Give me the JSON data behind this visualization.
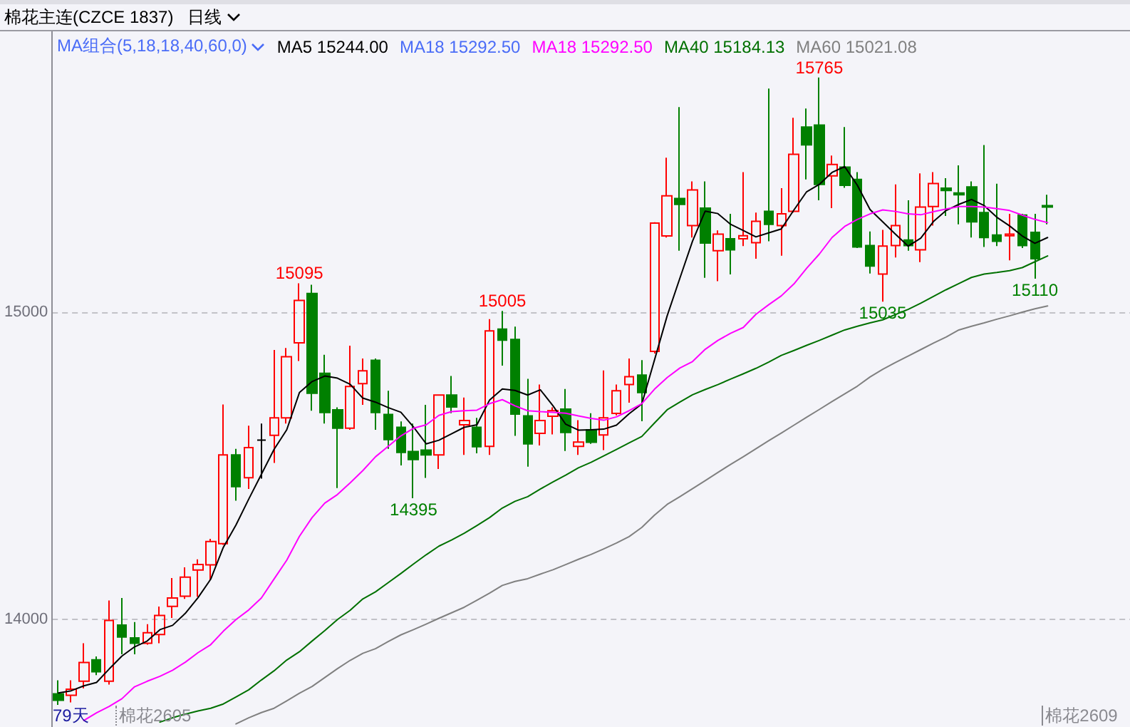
{
  "chart_data": {
    "type": "candlestick",
    "title": "棉花主连(CZCE 1837)",
    "subtitle": "日线",
    "legend_title": "MA组合(5,18,18,40,60,0)",
    "legend": "top left",
    "grid": "y",
    "tick_labels": "y",
    "marker": "none",
    "categories": [
      null,
      null,
      null,
      null,
      null,
      null,
      null,
      null,
      null,
      null,
      null,
      null,
      null,
      null,
      null,
      null,
      null,
      null,
      null,
      null,
      null,
      null,
      null,
      null,
      null,
      null,
      null,
      null,
      null,
      null,
      null,
      null,
      null,
      null,
      null,
      null,
      null,
      null,
      null,
      null,
      null,
      null,
      null,
      null,
      null,
      null,
      null,
      null,
      null,
      null,
      null,
      null,
      null,
      null,
      null,
      null,
      null,
      null,
      null,
      null,
      null,
      null,
      null,
      null,
      null,
      null,
      null,
      null,
      null,
      null,
      null,
      null,
      null,
      null,
      null,
      null,
      null,
      null,
      null
    ],
    "ylim": [
      13650,
      15920
    ],
    "yticks": [
      14000,
      15000
    ],
    "ohlc": [
      [
        13758,
        13802,
        13722,
        13737
      ],
      [
        13753,
        13802,
        13730,
        13773
      ],
      [
        13799,
        13923,
        13776,
        13860
      ],
      [
        13869,
        13880,
        13819,
        13830
      ],
      [
        13799,
        14062,
        13788,
        13997
      ],
      [
        13982,
        14070,
        13887,
        13943
      ],
      [
        13940,
        13992,
        13887,
        13923
      ],
      [
        13923,
        13985,
        13918,
        13957
      ],
      [
        13951,
        14042,
        13923,
        14013
      ],
      [
        14043,
        14135,
        14005,
        14070
      ],
      [
        14076,
        14170,
        14067,
        14138
      ],
      [
        14161,
        14196,
        14074,
        14179
      ],
      [
        14178,
        14263,
        14128,
        14254
      ],
      [
        14247,
        14700,
        14243,
        14536
      ],
      [
        14536,
        14556,
        14387,
        14433
      ],
      [
        14462,
        14631,
        14425,
        14560
      ],
      [
        14584,
        14638,
        14459,
        14584
      ],
      [
        14600,
        14878,
        14510,
        14657
      ],
      [
        14657,
        14884,
        14638,
        14856
      ],
      [
        14901,
        15095,
        14842,
        15039
      ],
      [
        15062,
        15090,
        14680,
        14737
      ],
      [
        14802,
        14862,
        14638,
        14674
      ],
      [
        14683,
        14691,
        14428,
        14623
      ],
      [
        14623,
        14892,
        14618,
        14759
      ],
      [
        14768,
        14850,
        14699,
        14810
      ],
      [
        14844,
        14850,
        14618,
        14674
      ],
      [
        14668,
        14745,
        14556,
        14586
      ],
      [
        14626,
        14645,
        14502,
        14544
      ],
      [
        14547,
        14638,
        14395,
        14521
      ],
      [
        14552,
        14699,
        14461,
        14536
      ],
      [
        14536,
        14731,
        14490,
        14731
      ],
      [
        14731,
        14793,
        14672,
        14692
      ],
      [
        14634,
        14723,
        14536,
        14648
      ],
      [
        14626,
        14657,
        14541,
        14563
      ],
      [
        14564,
        14978,
        14536,
        14940
      ],
      [
        14946,
        15005,
        14827,
        14910
      ],
      [
        14912,
        14954,
        14598,
        14669
      ],
      [
        14663,
        14784,
        14498,
        14572
      ],
      [
        14606,
        14765,
        14567,
        14648
      ],
      [
        14662,
        14691,
        14603,
        14680
      ],
      [
        14685,
        14751,
        14549,
        14609
      ],
      [
        14564,
        14649,
        14536,
        14578
      ],
      [
        14618,
        14672,
        14572,
        14577
      ],
      [
        14601,
        14811,
        14552,
        14657
      ],
      [
        14671,
        14765,
        14665,
        14745
      ],
      [
        14765,
        14850,
        14706,
        14791
      ],
      [
        14796,
        14845,
        14646,
        14739
      ],
      [
        14873,
        15294,
        14866,
        15291
      ],
      [
        15249,
        15504,
        15244,
        15380
      ],
      [
        15371,
        15669,
        15201,
        15352
      ],
      [
        15283,
        15427,
        15244,
        15399
      ],
      [
        15340,
        15427,
        15113,
        15226
      ],
      [
        15201,
        15267,
        15102,
        15255
      ],
      [
        15240,
        15321,
        15124,
        15204
      ],
      [
        15240,
        15457,
        15216,
        15250
      ],
      [
        15227,
        15325,
        15175,
        15297
      ],
      [
        15329,
        15729,
        15232,
        15287
      ],
      [
        15283,
        15405,
        15185,
        15321
      ],
      [
        15329,
        15634,
        15325,
        15515
      ],
      [
        15604,
        15664,
        15433,
        15546
      ],
      [
        15610,
        15765,
        15365,
        15417
      ],
      [
        15445,
        15511,
        15340,
        15482
      ],
      [
        15473,
        15604,
        15406,
        15414
      ],
      [
        15433,
        15457,
        15210,
        15213
      ],
      [
        15218,
        15264,
        15127,
        15151
      ],
      [
        15125,
        15269,
        15035,
        15216
      ],
      [
        15218,
        15417,
        15179,
        15283
      ],
      [
        15236,
        15365,
        15201,
        15218
      ],
      [
        15204,
        15453,
        15164,
        15343
      ],
      [
        15345,
        15457,
        15283,
        15420
      ],
      [
        15405,
        15437,
        15314,
        15397
      ],
      [
        15389,
        15479,
        15287,
        15383
      ],
      [
        15409,
        15427,
        15244,
        15295
      ],
      [
        15325,
        15545,
        15213,
        15244
      ],
      [
        15252,
        15419,
        15216,
        15232
      ],
      [
        15250,
        15321,
        15170,
        15255
      ],
      [
        15317,
        15321,
        15210,
        15218
      ],
      [
        15261,
        15321,
        15110,
        15175
      ],
      [
        15348,
        15383,
        15287,
        15343
      ]
    ],
    "colors": [
      "#008000",
      "#ff0000",
      "#ff0000",
      "#008000",
      "#ff0000",
      "#008000",
      "#008000",
      "#ff0000",
      "#ff0000",
      "#ff0000",
      "#ff0000",
      "#ff0000",
      "#ff0000",
      "#ff0000",
      "#008000",
      "#ff0000",
      "#000000",
      "#ff0000",
      "#ff0000",
      "#ff0000",
      "#008000",
      "#008000",
      "#008000",
      "#ff0000",
      "#ff0000",
      "#008000",
      "#008000",
      "#008000",
      "#008000",
      "#008000",
      "#ff0000",
      "#008000",
      "#ff0000",
      "#008000",
      "#ff0000",
      "#008000",
      "#008000",
      "#008000",
      "#ff0000",
      "#ff0000",
      "#008000",
      "#ff0000",
      "#008000",
      "#ff0000",
      "#ff0000",
      "#ff0000",
      "#008000",
      "#ff0000",
      "#ff0000",
      "#008000",
      "#ff0000",
      "#008000",
      "#ff0000",
      "#008000",
      "#ff0000",
      "#ff0000",
      "#008000",
      "#ff0000",
      "#ff0000",
      "#008000",
      "#008000",
      "#ff0000",
      "#008000",
      "#008000",
      "#008000",
      "#ff0000",
      "#ff0000",
      "#008000",
      "#ff0000",
      "#ff0000",
      "#008000",
      "#008000",
      "#008000",
      "#008000",
      "#008000",
      "#ff0000",
      "#008000",
      "#008000",
      "#008000"
    ],
    "series": [
      {
        "type": "line",
        "name": "MA5 15244.00",
        "color": "#000000",
        "values": [
          13761,
          13768,
          13784,
          13795,
          13839,
          13881,
          13911,
          13930,
          13967,
          13981,
          14020,
          14071,
          14131,
          14235,
          14308,
          14392,
          14473,
          14554,
          14618,
          14739,
          14775,
          14793,
          14786,
          14766,
          14721,
          14708,
          14690,
          14675,
          14627,
          14572,
          14584,
          14605,
          14626,
          14634,
          14715,
          14751,
          14746,
          14731,
          14748,
          14696,
          14636,
          14617,
          14618,
          14620,
          14633,
          14670,
          14702,
          14845,
          14989,
          15111,
          15232,
          15330,
          15322,
          15287,
          15267,
          15246,
          15259,
          15272,
          15334,
          15393,
          15417,
          15456,
          15475,
          15414,
          15335,
          15295,
          15255,
          15216,
          15242,
          15296,
          15332,
          15352,
          15368,
          15348,
          15310,
          15282,
          15249,
          15225,
          15244
        ]
      },
      {
        "type": "line",
        "name": "MA18 15292.50",
        "color": "#4a6cf7",
        "values": [
          null,
          null,
          null,
          null,
          null,
          null,
          null,
          null,
          null,
          null,
          null,
          null,
          null,
          null,
          null,
          null,
          null,
          null,
          null,
          null,
          null,
          null,
          null,
          null,
          null,
          null,
          null,
          null,
          null,
          null,
          null,
          null,
          null,
          null,
          null,
          null,
          null,
          null,
          null,
          null,
          null,
          null,
          null,
          null,
          null,
          null,
          null,
          null,
          null,
          null,
          null,
          null,
          null,
          null,
          null,
          null,
          null,
          null,
          null,
          null,
          null,
          null,
          null,
          null,
          null,
          null,
          null,
          null,
          null,
          null,
          null,
          null,
          null,
          null,
          null,
          null,
          null,
          null,
          null
        ]
      },
      {
        "type": "line",
        "name": "MA18 15292.50",
        "color": "#ff00ff",
        "values": [
          null,
          null,
          13671,
          13696,
          13717,
          13742,
          13781,
          13799,
          13815,
          13835,
          13861,
          13892,
          13918,
          13962,
          14000,
          14031,
          14070,
          14132,
          14193,
          14271,
          14332,
          14379,
          14407,
          14445,
          14485,
          14530,
          14564,
          14598,
          14623,
          14634,
          14665,
          14677,
          14680,
          14682,
          14703,
          14716,
          14696,
          14680,
          14677,
          14675,
          14672,
          14663,
          14655,
          14649,
          14660,
          14680,
          14703,
          14750,
          14788,
          14819,
          14840,
          14880,
          14909,
          14932,
          14951,
          14994,
          15025,
          15054,
          15093,
          15144,
          15190,
          15244,
          15280,
          15303,
          15321,
          15334,
          15329,
          15321,
          15318,
          15328,
          15337,
          15345,
          15345,
          15343,
          15338,
          15332,
          15317,
          15303,
          15292.5
        ]
      },
      {
        "type": "line",
        "name": "MA40 15184.13",
        "color": "#007000",
        "values": [
          null,
          null,
          null,
          null,
          null,
          null,
          null,
          null,
          13666,
          13680,
          13692,
          13702,
          13711,
          13725,
          13748,
          13771,
          13803,
          13833,
          13868,
          13895,
          13930,
          13964,
          14000,
          14030,
          14067,
          14090,
          14120,
          14150,
          14181,
          14211,
          14239,
          14259,
          14281,
          14306,
          14332,
          14363,
          14385,
          14400,
          14425,
          14448,
          14470,
          14494,
          14512,
          14533,
          14554,
          14575,
          14596,
          14640,
          14683,
          14708,
          14732,
          14749,
          14765,
          14783,
          14800,
          14818,
          14838,
          14860,
          14876,
          14893,
          14909,
          14926,
          14943,
          14955,
          14966,
          14976,
          14993,
          15010,
          15030,
          15052,
          15074,
          15094,
          15114,
          15125,
          15130,
          15136,
          15146,
          15165,
          15184.13
        ]
      },
      {
        "type": "line",
        "name": "MA60 15021.08",
        "color": "#808080",
        "values": [
          null,
          null,
          null,
          null,
          null,
          null,
          null,
          null,
          null,
          null,
          null,
          null,
          null,
          null,
          13660,
          13680,
          13697,
          13711,
          13735,
          13760,
          13782,
          13811,
          13840,
          13867,
          13890,
          13905,
          13928,
          13950,
          13967,
          13985,
          14004,
          14022,
          14040,
          14063,
          14086,
          14111,
          14124,
          14133,
          14148,
          14162,
          14179,
          14196,
          14212,
          14230,
          14249,
          14270,
          14300,
          14340,
          14375,
          14400,
          14426,
          14452,
          14479,
          14505,
          14530,
          14556,
          14582,
          14607,
          14633,
          14659,
          14684,
          14710,
          14735,
          14760,
          14790,
          14815,
          14837,
          14858,
          14879,
          14900,
          14920,
          14943,
          14955,
          14966,
          14978,
          14989,
          15001,
          15012,
          15021.08
        ]
      }
    ],
    "annotations": [
      {
        "text": "15765",
        "y": 15765
      },
      {
        "text": "15095",
        "y": 15095
      },
      {
        "text": "15005",
        "y": 15005
      },
      {
        "text": "14395",
        "y": 14395
      },
      {
        "text": "15035",
        "y": 15035
      },
      {
        "text": "15110",
        "y": 15110
      },
      "79天",
      "棉花2605",
      "棉花2609"
    ]
  }
}
